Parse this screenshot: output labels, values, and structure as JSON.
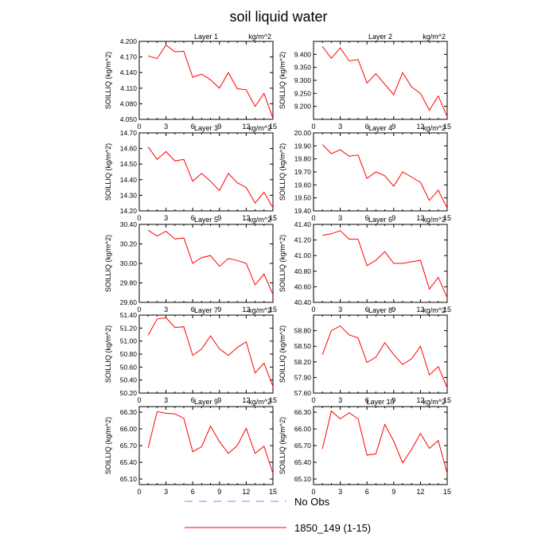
{
  "title": "soil liquid water",
  "chart_data": {
    "type": "line",
    "x": [
      1,
      2,
      3,
      4,
      5,
      6,
      7,
      8,
      9,
      10,
      11,
      12,
      13,
      14,
      15
    ],
    "xticks": [
      0,
      3,
      6,
      9,
      12,
      15
    ],
    "xlim": [
      0,
      15
    ],
    "ylabel": "SOILLIQ  (kg/m^2)",
    "units": "kg/m^2",
    "panels": [
      {
        "title": "Layer 1",
        "ylim": [
          4.05,
          4.2
        ],
        "yticks": [
          "4.050",
          "4.080",
          "4.110",
          "4.140",
          "4.170",
          "4.200"
        ],
        "values": [
          4.172,
          4.167,
          4.193,
          4.18,
          4.181,
          4.131,
          4.137,
          4.126,
          4.11,
          4.14,
          4.109,
          4.107,
          4.075,
          4.1,
          4.052
        ]
      },
      {
        "title": "Layer 2",
        "ylim": [
          9.15,
          9.45
        ],
        "yticks": [
          "9.200",
          "9.250",
          "9.300",
          "9.350",
          "9.400"
        ],
        "values": [
          9.43,
          9.385,
          9.425,
          9.375,
          9.38,
          9.29,
          9.325,
          9.285,
          9.245,
          9.33,
          9.275,
          9.25,
          9.185,
          9.24,
          9.16
        ]
      },
      {
        "title": "Layer 3",
        "ylim": [
          14.2,
          14.7
        ],
        "yticks": [
          "14.20",
          "14.30",
          "14.40",
          "14.50",
          "14.60",
          "14.70"
        ],
        "values": [
          14.61,
          14.53,
          14.58,
          14.52,
          14.53,
          14.39,
          14.44,
          14.39,
          14.33,
          14.44,
          14.38,
          14.35,
          14.25,
          14.32,
          14.22
        ]
      },
      {
        "title": "Layer 4",
        "ylim": [
          19.4,
          20.0
        ],
        "yticks": [
          "19.40",
          "19.50",
          "19.60",
          "19.70",
          "19.80",
          "19.90",
          "20.00"
        ],
        "values": [
          19.91,
          19.84,
          19.87,
          19.82,
          19.83,
          19.65,
          19.7,
          19.67,
          19.59,
          19.7,
          19.66,
          19.62,
          19.48,
          19.56,
          19.42
        ]
      },
      {
        "title": "Layer 5",
        "ylim": [
          29.6,
          30.4
        ],
        "yticks": [
          "29.60",
          "29.80",
          "30.00",
          "30.20",
          "30.40"
        ],
        "values": [
          30.34,
          30.28,
          30.33,
          30.25,
          30.26,
          30.0,
          30.06,
          30.08,
          29.97,
          30.05,
          30.03,
          30.0,
          29.78,
          29.89,
          29.68
        ]
      },
      {
        "title": "Layer 6",
        "ylim": [
          40.4,
          41.4
        ],
        "yticks": [
          "40.40",
          "40.60",
          "40.80",
          "41.00",
          "41.20",
          "41.40"
        ],
        "values": [
          41.26,
          41.28,
          41.32,
          41.21,
          41.21,
          40.87,
          40.94,
          41.05,
          40.9,
          40.9,
          40.92,
          40.94,
          40.57,
          40.72,
          40.46
        ]
      },
      {
        "title": "Layer 7",
        "ylim": [
          50.2,
          51.4
        ],
        "yticks": [
          "50.20",
          "50.40",
          "50.60",
          "50.80",
          "51.00",
          "51.20",
          "51.40"
        ],
        "values": [
          51.09,
          51.34,
          51.36,
          51.21,
          51.22,
          50.78,
          50.88,
          51.08,
          50.88,
          50.78,
          50.9,
          50.99,
          50.51,
          50.66,
          50.3
        ]
      },
      {
        "title": "Layer 8",
        "ylim": [
          57.6,
          59.1
        ],
        "yticks": [
          "57.60",
          "57.90",
          "58.20",
          "58.50",
          "58.80"
        ],
        "values": [
          58.34,
          58.8,
          58.89,
          58.72,
          58.66,
          58.19,
          58.29,
          58.57,
          58.34,
          58.15,
          58.26,
          58.5,
          57.95,
          58.11,
          57.7
        ]
      },
      {
        "title": "Layer 9",
        "ylim": [
          65.0,
          66.4
        ],
        "yticks": [
          "65.10",
          "65.40",
          "65.70",
          "66.00",
          "66.30"
        ],
        "values": [
          65.66,
          66.31,
          66.28,
          66.27,
          66.19,
          65.59,
          65.68,
          66.05,
          65.77,
          65.56,
          65.7,
          66.01,
          65.56,
          65.69,
          65.2
        ]
      },
      {
        "title": "Layer 10",
        "ylim": [
          65.0,
          66.4
        ],
        "yticks": [
          "65.10",
          "65.40",
          "65.70",
          "66.00",
          "66.30"
        ],
        "values": [
          65.64,
          66.32,
          66.18,
          66.29,
          66.18,
          65.53,
          65.55,
          66.08,
          65.78,
          65.39,
          65.63,
          65.92,
          65.65,
          65.79,
          65.2
        ]
      }
    ],
    "legend": [
      {
        "label": "No Obs",
        "color": "#8080ff",
        "style": "dashed"
      },
      {
        "label": "1850_149 (1-15)",
        "color": "#ff0000",
        "style": "solid"
      }
    ]
  }
}
